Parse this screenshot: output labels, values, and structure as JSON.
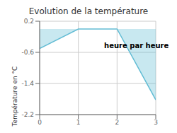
{
  "chart_data": {
    "type": "line",
    "title": "Evolution de la température",
    "ylabel": "Température en °C",
    "x": [
      0,
      1,
      2,
      3
    ],
    "values": [
      -0.5,
      0.0,
      0.0,
      -1.82
    ],
    "color": "#62bcd4",
    "xlim": [
      0,
      3
    ],
    "xticks": [
      0,
      1,
      2,
      3
    ],
    "ylim": [
      -2.2,
      0.2
    ],
    "yticks": [
      0.2,
      -0.6,
      -1.4,
      -2.2
    ],
    "grid": true,
    "annotations": [
      {
        "text": "heure par heure",
        "x": 2.5,
        "y": -0.42
      }
    ]
  }
}
